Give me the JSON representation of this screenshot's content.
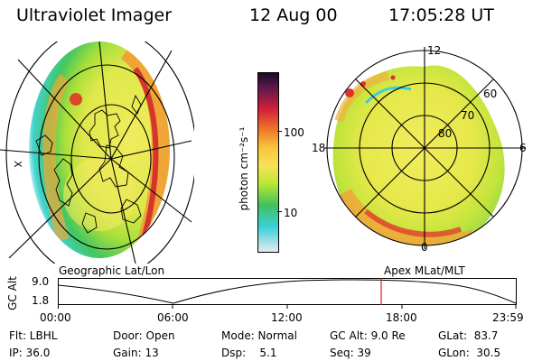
{
  "header": {
    "title": "Ultraviolet Imager",
    "date": "12 Aug 00",
    "time": "17:05:28 UT"
  },
  "left_map": {
    "caption": "Geographic Lat/Lon",
    "side_label": "X"
  },
  "right_map": {
    "caption": "Apex MLat/MLT",
    "top_label": "12",
    "bottom_label": "0",
    "left_label": "18",
    "right_label": "6",
    "lat_labels": [
      "80",
      "70",
      "60"
    ]
  },
  "colorbar": {
    "unit_label": "photon cm⁻²s⁻¹",
    "tick_labels": [
      "100",
      "10"
    ],
    "scale": "log",
    "colors": [
      "#1a0a2a",
      "#d11e3a",
      "#f07a2a",
      "#f6e15a",
      "#b8e830",
      "#40c060",
      "#3ad0d8",
      "#e6eaf0"
    ]
  },
  "altitude_plot": {
    "axis_label": "GC Alt",
    "y_ticks": [
      "9.0",
      "1.8"
    ],
    "x_ticks": [
      "00:00",
      "06:00",
      "12:00",
      "18:00",
      "23:59"
    ],
    "marker_color": "#e21b1b"
  },
  "status": {
    "flt": "Flt: LBHL",
    "ip": "IP: 36.0",
    "door": "Door: Open",
    "gain": "Gain: 13",
    "mode": "Mode: Normal",
    "dsp": "Dsp:    5.1",
    "gc_alt": "GC Alt: 9.0 Re",
    "seq": "Seq: 39",
    "glat": "GLat:  83.7",
    "glon": "GLon:  30.5"
  }
}
